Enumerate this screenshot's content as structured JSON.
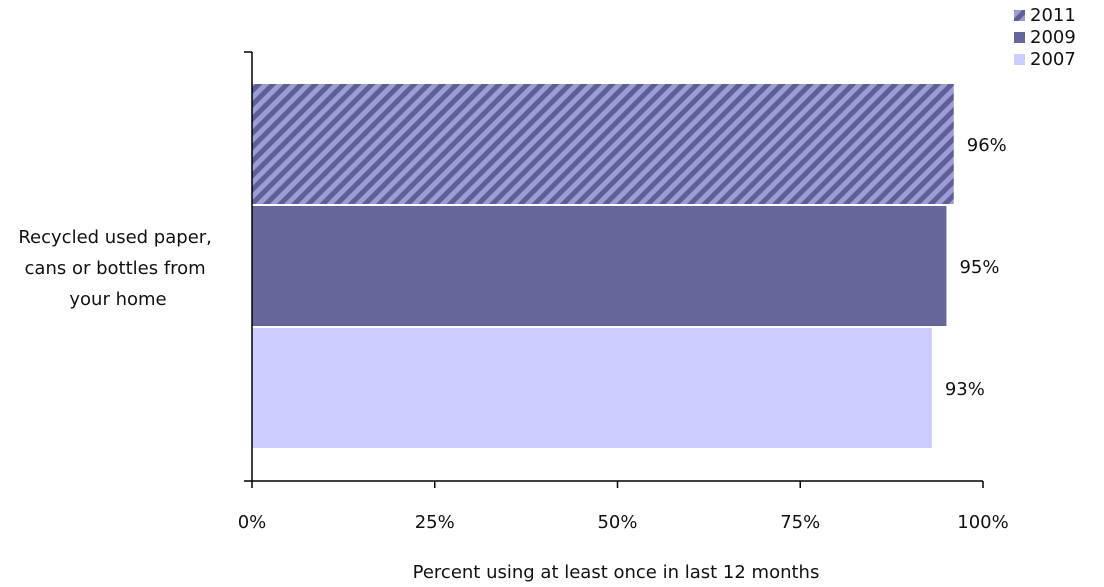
{
  "chart_data": {
    "type": "bar",
    "orientation": "horizontal",
    "categories": [
      "Recycled used paper, cans or bottles from your home"
    ],
    "category_lines": [
      "Recycled used paper,",
      "cans or bottles from",
      "your home"
    ],
    "series": [
      {
        "name": "2011",
        "values": [
          96
        ],
        "value_labels": [
          "96%"
        ],
        "color": "#9C9CD6",
        "pattern": "diagonal-stripes",
        "stripe_color": "#5F5F96"
      },
      {
        "name": "2009",
        "values": [
          95
        ],
        "value_labels": [
          "95%"
        ],
        "color": "#66669A"
      },
      {
        "name": "2007",
        "values": [
          93
        ],
        "value_labels": [
          "93%"
        ],
        "color": "#CCCCFF"
      }
    ],
    "xlabel": "Percent using at least once in last 12 months",
    "xlim": [
      0,
      100
    ],
    "xticks": [
      0,
      25,
      50,
      75,
      100
    ],
    "xtick_labels": [
      "0%",
      "25%",
      "50%",
      "75%",
      "100%"
    ],
    "grid": false,
    "legend": {
      "position": "top-right",
      "entries": [
        "2011",
        "2009",
        "2007"
      ]
    }
  }
}
